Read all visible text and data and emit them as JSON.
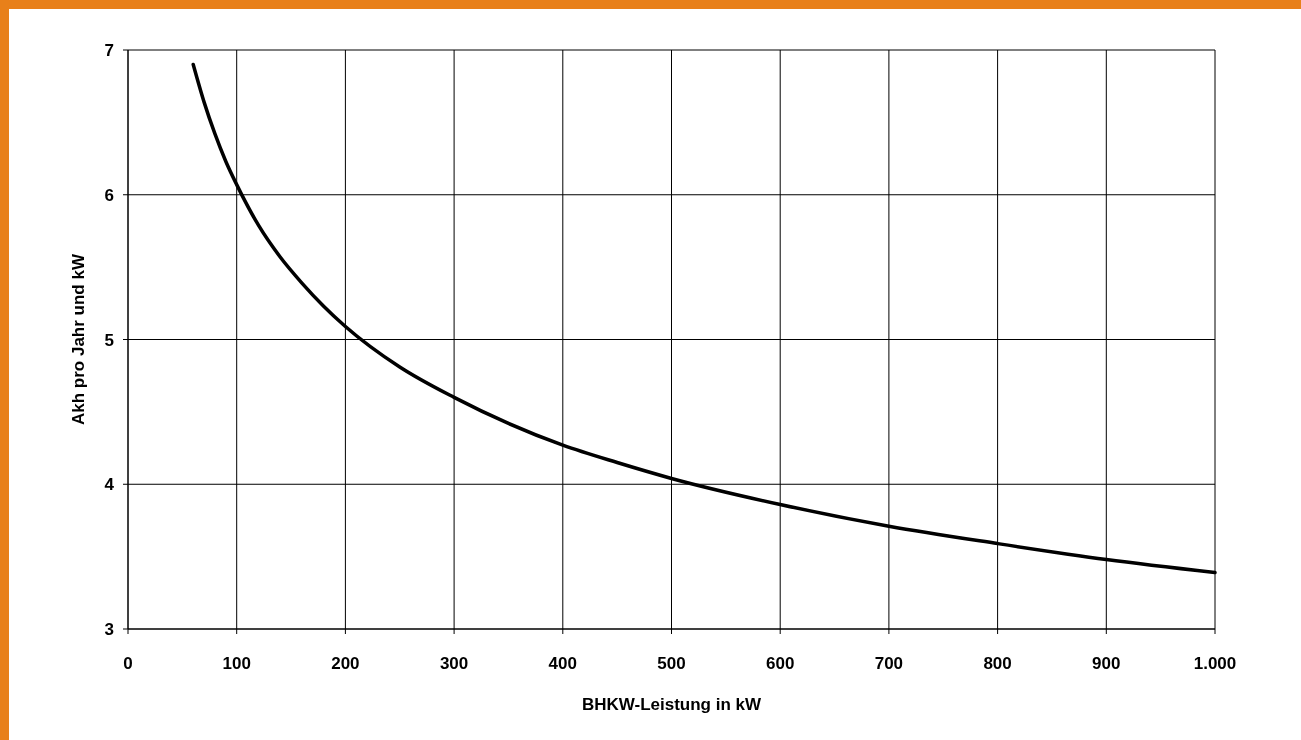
{
  "chart_data": {
    "type": "line",
    "xlabel": "BHKW-Leistung in kW",
    "ylabel": "Akh pro Jahr und kW",
    "x": [
      60,
      70,
      80,
      90,
      100,
      120,
      140,
      160,
      180,
      200,
      250,
      300,
      350,
      400,
      450,
      500,
      600,
      700,
      800,
      900,
      1000
    ],
    "series": [
      {
        "color": "#000000",
        "values": [
          6.9,
          6.64,
          6.42,
          6.23,
          6.07,
          5.79,
          5.57,
          5.39,
          5.23,
          5.09,
          4.81,
          4.6,
          4.42,
          4.27,
          4.15,
          4.04,
          3.86,
          3.71,
          3.59,
          3.48,
          3.39
        ]
      }
    ],
    "xlim": [
      0,
      1000
    ],
    "xticks": [
      0,
      100,
      200,
      300,
      400,
      500,
      600,
      700,
      800,
      900,
      {
        "value": 1000,
        "label": "1.000"
      }
    ],
    "ylim": [
      3,
      7
    ],
    "yticks": [
      3,
      4,
      5,
      6,
      7
    ],
    "grid": true,
    "marker": "none",
    "line_style": "solid"
  }
}
